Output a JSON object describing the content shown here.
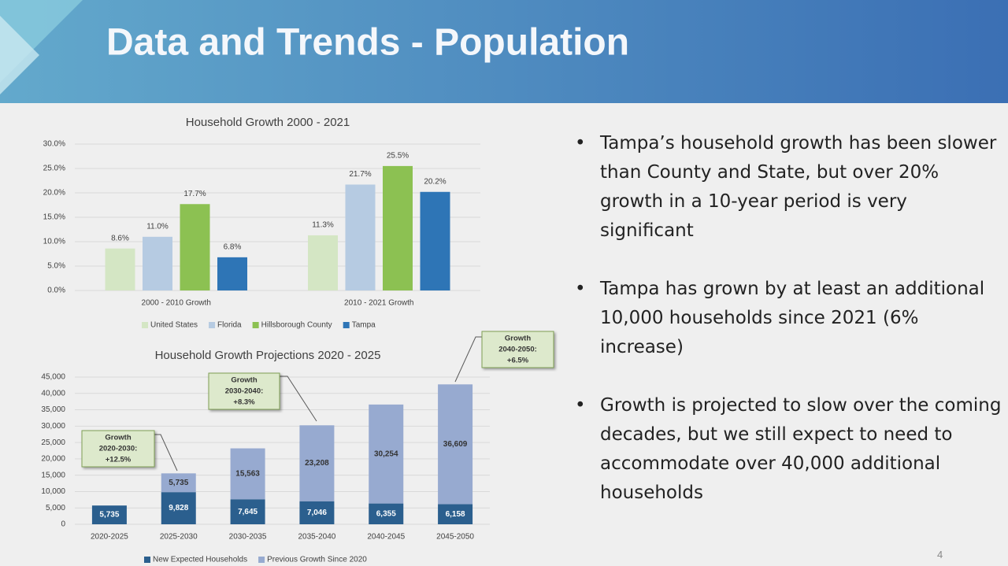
{
  "title": "Data and Trends - Population",
  "bullets": [
    "Tampa’s household growth has been slower than County and State, but over 20% growth in a 10-year period is very significant",
    "Tampa has grown by at least an additional 10,000 households since 2021 (6% increase)",
    "Growth is projected to slow over the coming decades, but we still expect to need to accommodate over 40,000 additional households"
  ],
  "page_number": "4",
  "chart_data": [
    {
      "type": "bar",
      "title": "Household Growth 2000 - 2021",
      "categories": [
        "2000 - 2010 Growth",
        "2010 - 2021 Growth"
      ],
      "series": [
        {
          "name": "United States",
          "color": "#d4e6c4",
          "values": [
            8.6,
            11.3
          ],
          "value_labels": [
            "8.6%",
            "11.3%"
          ]
        },
        {
          "name": "Florida",
          "color": "#b6cbe2",
          "values": [
            11.0,
            21.7
          ],
          "value_labels": [
            "11.0%",
            "21.7%"
          ]
        },
        {
          "name": "Hillsborough County",
          "color": "#8cc152",
          "values": [
            17.7,
            25.5
          ],
          "value_labels": [
            "17.7%",
            "25.5%"
          ]
        },
        {
          "name": "Tampa",
          "color": "#2e75b6",
          "values": [
            6.8,
            20.2
          ],
          "value_labels": [
            "6.8%",
            "20.2%"
          ]
        }
      ],
      "ylim": [
        0,
        30
      ],
      "yticks": [
        {
          "value": 0,
          "label": "0.0%"
        },
        {
          "value": 5,
          "label": "5.0%"
        },
        {
          "value": 10,
          "label": "10.0%"
        },
        {
          "value": 15,
          "label": "15.0%"
        },
        {
          "value": 20,
          "label": "20.0%"
        },
        {
          "value": 25,
          "label": "25.0%"
        },
        {
          "value": 30,
          "label": "30.0%"
        }
      ],
      "grid": true,
      "legend": "bottom"
    },
    {
      "type": "stacked_bar",
      "title": "Household Growth Projections 2020 - 2025",
      "categories": [
        "2020-2025",
        "2025-2030",
        "2030-2035",
        "2035-2040",
        "2040-2045",
        "2045-2050"
      ],
      "series": [
        {
          "name": "New Expected Households",
          "color": "#2b5f8e",
          "values": [
            5735,
            9828,
            7645,
            7046,
            6355,
            6158
          ],
          "value_labels": [
            "5,735",
            "9,828",
            "7,645",
            "7,046",
            "6,355",
            "6,158"
          ]
        },
        {
          "name": "Previous Growth Since 2020",
          "color": "#97aad0",
          "values": [
            null,
            5735,
            15563,
            23208,
            30254,
            36609
          ],
          "value_labels": [
            null,
            "5,735",
            "15,563",
            "23,208",
            "30,254",
            "36,609"
          ]
        }
      ],
      "ylim": [
        0,
        45000
      ],
      "yticks": [
        0,
        {
          "value": 5000,
          "label": "5,000"
        },
        {
          "value": 10000,
          "label": "10,000"
        },
        {
          "value": 15000,
          "label": "15,000"
        },
        {
          "value": 20000,
          "label": "20,000"
        },
        {
          "value": 25000,
          "label": "25,000"
        },
        {
          "value": 30000,
          "label": "30,000"
        },
        {
          "value": 35000,
          "label": "35,000"
        },
        {
          "value": 40000,
          "label": "40,000"
        },
        {
          "value": 45000,
          "label": "45,000"
        }
      ],
      "grid": true,
      "legend": "bottom",
      "annotations": [
        {
          "lines": [
            "Growth",
            "2020-2030:",
            "+12.5%"
          ]
        },
        {
          "lines": [
            "Growth",
            "2030-2040:",
            "+8.3%"
          ]
        },
        {
          "lines": [
            "Growth",
            "2040-2050:",
            "+6.5%"
          ]
        }
      ]
    }
  ]
}
